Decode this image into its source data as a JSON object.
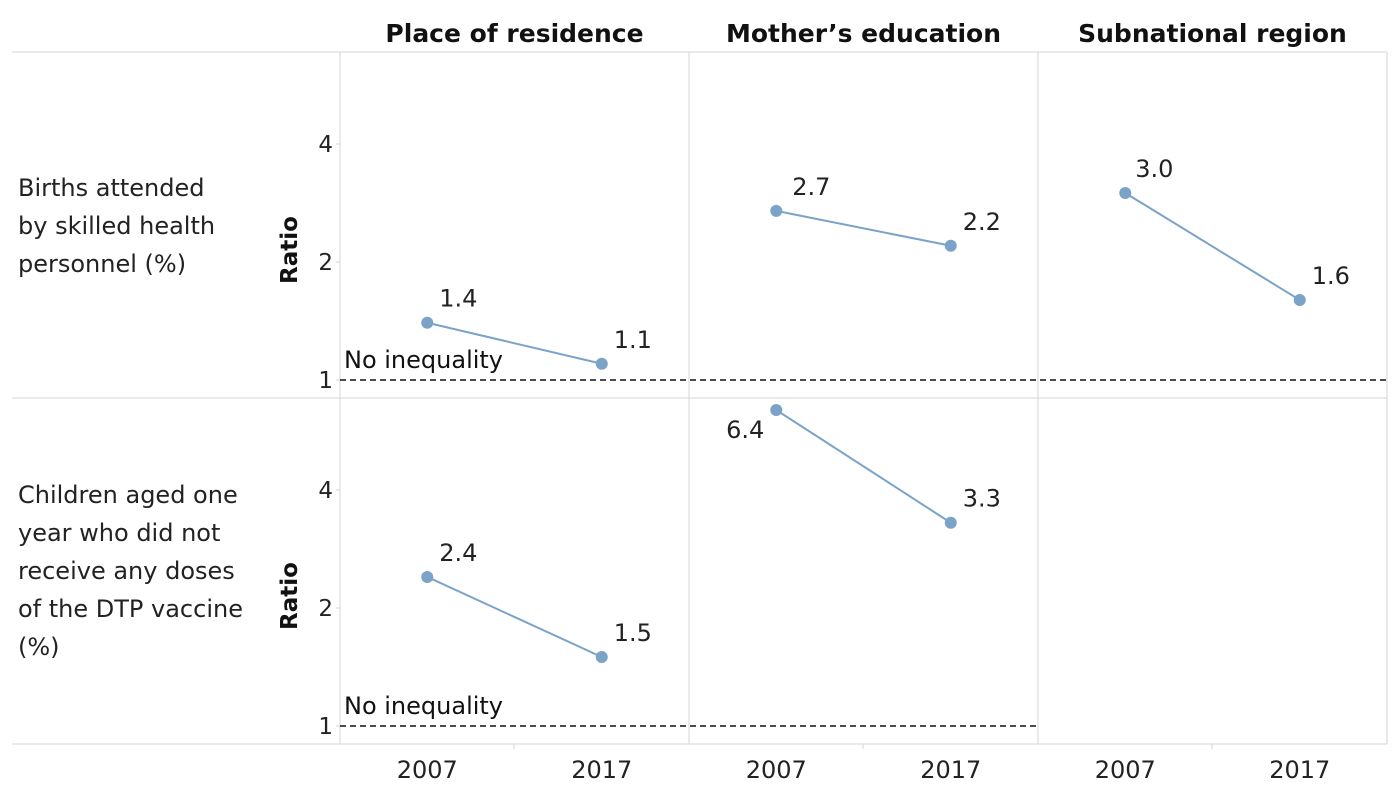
{
  "chart_data": {
    "type": "line",
    "title": "",
    "column_headers": [
      "Place of residence",
      "Mother’s education",
      "Subnational region"
    ],
    "row_headers": [
      "Births attended by skilled health personnel (%)",
      "Children aged one year who did not receive any doses of the DTP vaccine (%)"
    ],
    "ylabel": "Ratio",
    "y_scale": "log",
    "y_ticks": [
      "1",
      "2",
      "4"
    ],
    "x": [
      "2007",
      "2017"
    ],
    "reference_line": {
      "value": 1,
      "label": "No inequality",
      "style": "dashed"
    },
    "line_color": "#7ba3c8",
    "panels": [
      {
        "row": 0,
        "column": 0,
        "values": [
          1.4,
          1.1
        ],
        "labels": [
          "1.4",
          "1.1"
        ]
      },
      {
        "row": 0,
        "column": 1,
        "values": [
          2.7,
          2.2
        ],
        "labels": [
          "2.7",
          "2.2"
        ]
      },
      {
        "row": 0,
        "column": 2,
        "values": [
          3.0,
          1.6
        ],
        "labels": [
          "3.0",
          "1.6"
        ]
      },
      {
        "row": 1,
        "column": 0,
        "values": [
          2.4,
          1.5
        ],
        "labels": [
          "2.4",
          "1.5"
        ]
      },
      {
        "row": 1,
        "column": 1,
        "values": [
          6.4,
          3.3
        ],
        "labels": [
          "6.4",
          "3.3"
        ]
      },
      {
        "row": 1,
        "column": 2,
        "values": [],
        "labels": []
      }
    ]
  }
}
